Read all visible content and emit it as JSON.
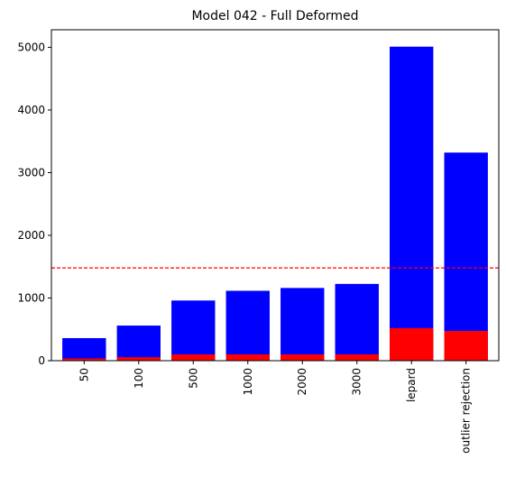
{
  "chart_data": {
    "type": "bar",
    "title": "Model 042 - Full Deformed",
    "xlabel": "",
    "ylabel": "",
    "categories": [
      "50",
      "100",
      "500",
      "1000",
      "2000",
      "3000",
      "lepard",
      "outlier rejection"
    ],
    "series": [
      {
        "values": [
          360,
          560,
          960,
          1115,
          1160,
          1225,
          5010,
          3320
        ],
        "color": "#0000ff"
      },
      {
        "values": [
          35,
          55,
          100,
          100,
          100,
          100,
          520,
          475
        ],
        "color": "#ff0000"
      }
    ],
    "ylim": [
      0,
      5280
    ],
    "yticks": [
      0,
      1000,
      2000,
      3000,
      4000,
      5000
    ],
    "reference_line": {
      "value": 1480,
      "color": "#ff0000",
      "style": "dashed"
    },
    "grid": false,
    "legend": "none",
    "overlay": true
  }
}
